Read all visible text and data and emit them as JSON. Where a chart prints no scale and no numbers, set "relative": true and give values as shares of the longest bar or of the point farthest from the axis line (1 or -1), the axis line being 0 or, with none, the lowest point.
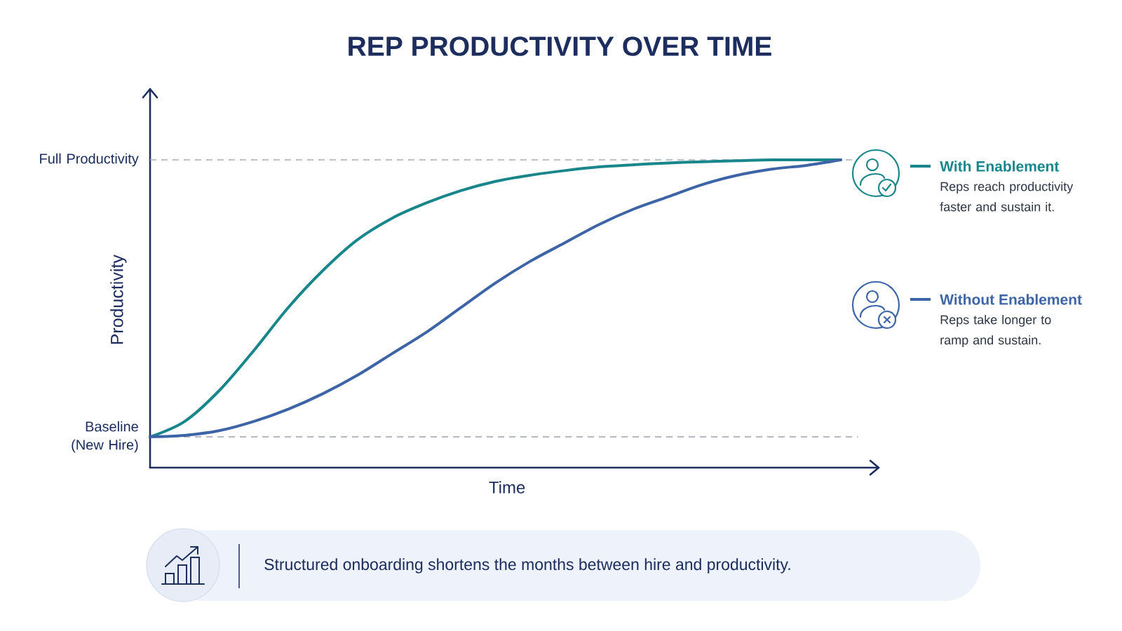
{
  "chart_data": {
    "type": "line",
    "title": "REP PRODUCTIVITY OVER TIME",
    "xlabel": "Time",
    "ylabel": "Productivity",
    "relative": true,
    "categories": [
      null,
      null,
      null,
      null,
      null,
      null,
      null,
      null,
      null,
      null,
      null,
      null,
      null,
      null,
      null,
      null,
      null,
      null,
      null,
      null,
      null
    ],
    "series": [
      {
        "name": "With Enablement",
        "color": "#18868a",
        "values": [
          0.1,
          0.15,
          0.25,
          0.38,
          0.52,
          0.64,
          0.74,
          0.81,
          0.86,
          0.9,
          0.93,
          0.95,
          0.965,
          0.977,
          0.984,
          0.99,
          0.994,
          0.997,
          1.0,
          1.0,
          1.0
        ]
      },
      {
        "name": "Without Enablement",
        "color": "#3d64a6",
        "values": [
          0.1,
          0.105,
          0.12,
          0.15,
          0.19,
          0.24,
          0.3,
          0.37,
          0.44,
          0.52,
          0.6,
          0.67,
          0.73,
          0.79,
          0.84,
          0.88,
          0.92,
          0.95,
          0.97,
          0.982,
          1.0
        ]
      }
    ],
    "ref_lines": [
      {
        "axis": "y",
        "value": 1,
        "label": "Full Productivity",
        "color": "#a9afbd",
        "line_style": "dashed"
      },
      {
        "axis": "y",
        "value": 0.1,
        "label": "Baseline (New Hire)",
        "color": "#a9afbd",
        "line_style": "dashed"
      }
    ],
    "legend": "right",
    "annotations": [
      "Reps reach productivity faster and sustain it.",
      "Reps take longer to ramp and sustain.",
      "Structured onboarding shortens the months between hire and productivity."
    ]
  }
}
